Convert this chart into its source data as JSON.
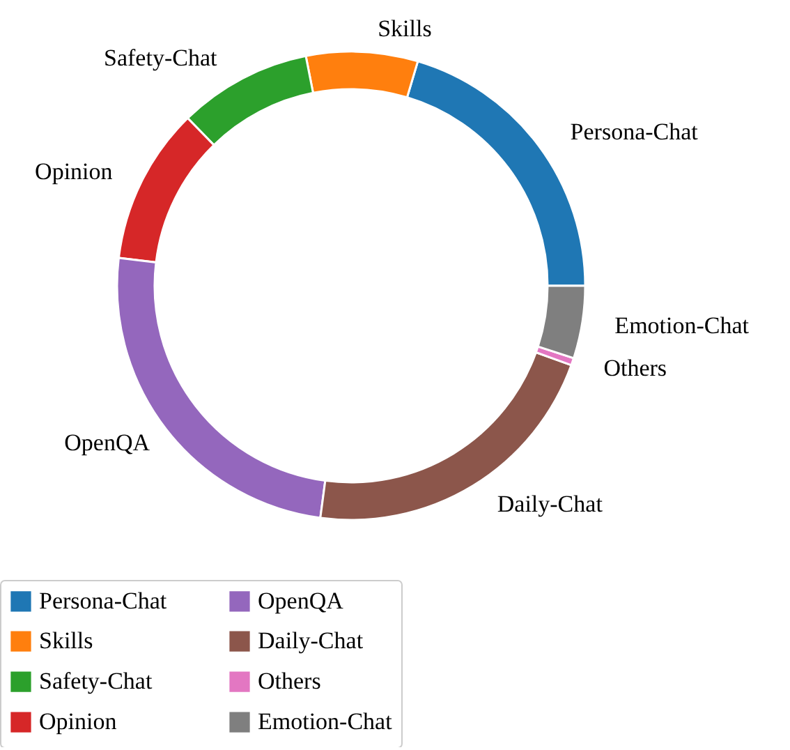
{
  "chart_data": {
    "type": "donut",
    "categories": [
      "Persona-Chat",
      "Skills",
      "Safety-Chat",
      "Opinion",
      "OpenQA",
      "Daily-Chat",
      "Others",
      "Emotion-Chat"
    ],
    "values": [
      20.4,
      7.7,
      9.2,
      10.8,
      24.8,
      21.6,
      0.5,
      5.0
    ],
    "colors": [
      "#1f77b4",
      "#ff7f0e",
      "#2ca02c",
      "#d62728",
      "#9467bd",
      "#8c564b",
      "#e377c2",
      "#7f7f7f"
    ],
    "legend": "bottom"
  }
}
